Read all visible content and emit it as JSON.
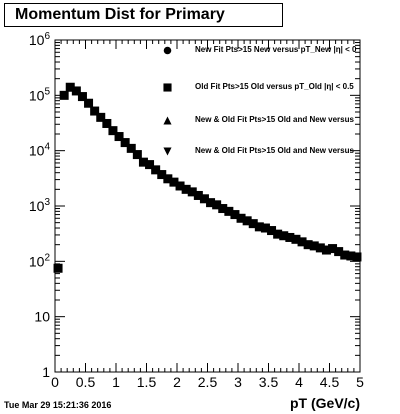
{
  "title": "Momentum Dist for Primary",
  "footer": "Tue Mar 29 15:21:36 2016",
  "legend": [
    {
      "marker": "circle",
      "label": "New Fit Pts>15 New versus pT_New |η| < 0"
    },
    {
      "marker": "square",
      "label": "Old Fit Pts>15 Old versus pT_Old |η| < 0.5"
    },
    {
      "marker": "triangle-up",
      "label": "New & Old Fit Pts>15 Old and New versus"
    },
    {
      "marker": "triangle-down",
      "label": "New & Old Fit Pts>15 Old and New versus"
    }
  ],
  "chart_data": {
    "type": "scatter",
    "title": "Momentum Dist for Primary",
    "xlabel": "pT (GeV/c)",
    "ylabel": "",
    "xlim": [
      0,
      5
    ],
    "ylim": [
      1,
      1000000
    ],
    "yscale": "log",
    "grid": false,
    "legend_position": "top-right",
    "x_ticks": [
      "0",
      "0.5",
      "1",
      "1.5",
      "2",
      "2.5",
      "3",
      "3.5",
      "4",
      "4.5",
      "5"
    ],
    "y_ticks": [
      "1",
      "10",
      "10^2",
      "10^3",
      "10^4",
      "10^5",
      "10^6"
    ],
    "series": [
      {
        "name": "Old Fit Pts>15 Old versus pT_Old |η| < 0.5",
        "marker": "square",
        "x": [
          0.05,
          0.15,
          0.25,
          0.35,
          0.45,
          0.55,
          0.65,
          0.75,
          0.85,
          0.95,
          1.05,
          1.15,
          1.25,
          1.35,
          1.45,
          1.55,
          1.65,
          1.75,
          1.85,
          1.95,
          2.05,
          2.15,
          2.25,
          2.35,
          2.45,
          2.55,
          2.65,
          2.75,
          2.85,
          2.95,
          3.05,
          3.15,
          3.25,
          3.35,
          3.45,
          3.55,
          3.65,
          3.75,
          3.85,
          3.95,
          4.05,
          4.15,
          4.25,
          4.35,
          4.45,
          4.55,
          4.65,
          4.75,
          4.85,
          4.95
        ],
        "y": [
          75,
          100000,
          140000,
          120000,
          95000,
          72000,
          52000,
          40000,
          31000,
          23000,
          18000,
          14000,
          11000,
          8500,
          6200,
          5600,
          4500,
          3700,
          3100,
          2700,
          2300,
          2000,
          1800,
          1550,
          1350,
          1150,
          1050,
          900,
          800,
          700,
          600,
          540,
          480,
          420,
          400,
          360,
          310,
          290,
          270,
          250,
          225,
          200,
          190,
          175,
          160,
          170,
          150,
          130,
          125,
          120
        ]
      }
    ]
  }
}
